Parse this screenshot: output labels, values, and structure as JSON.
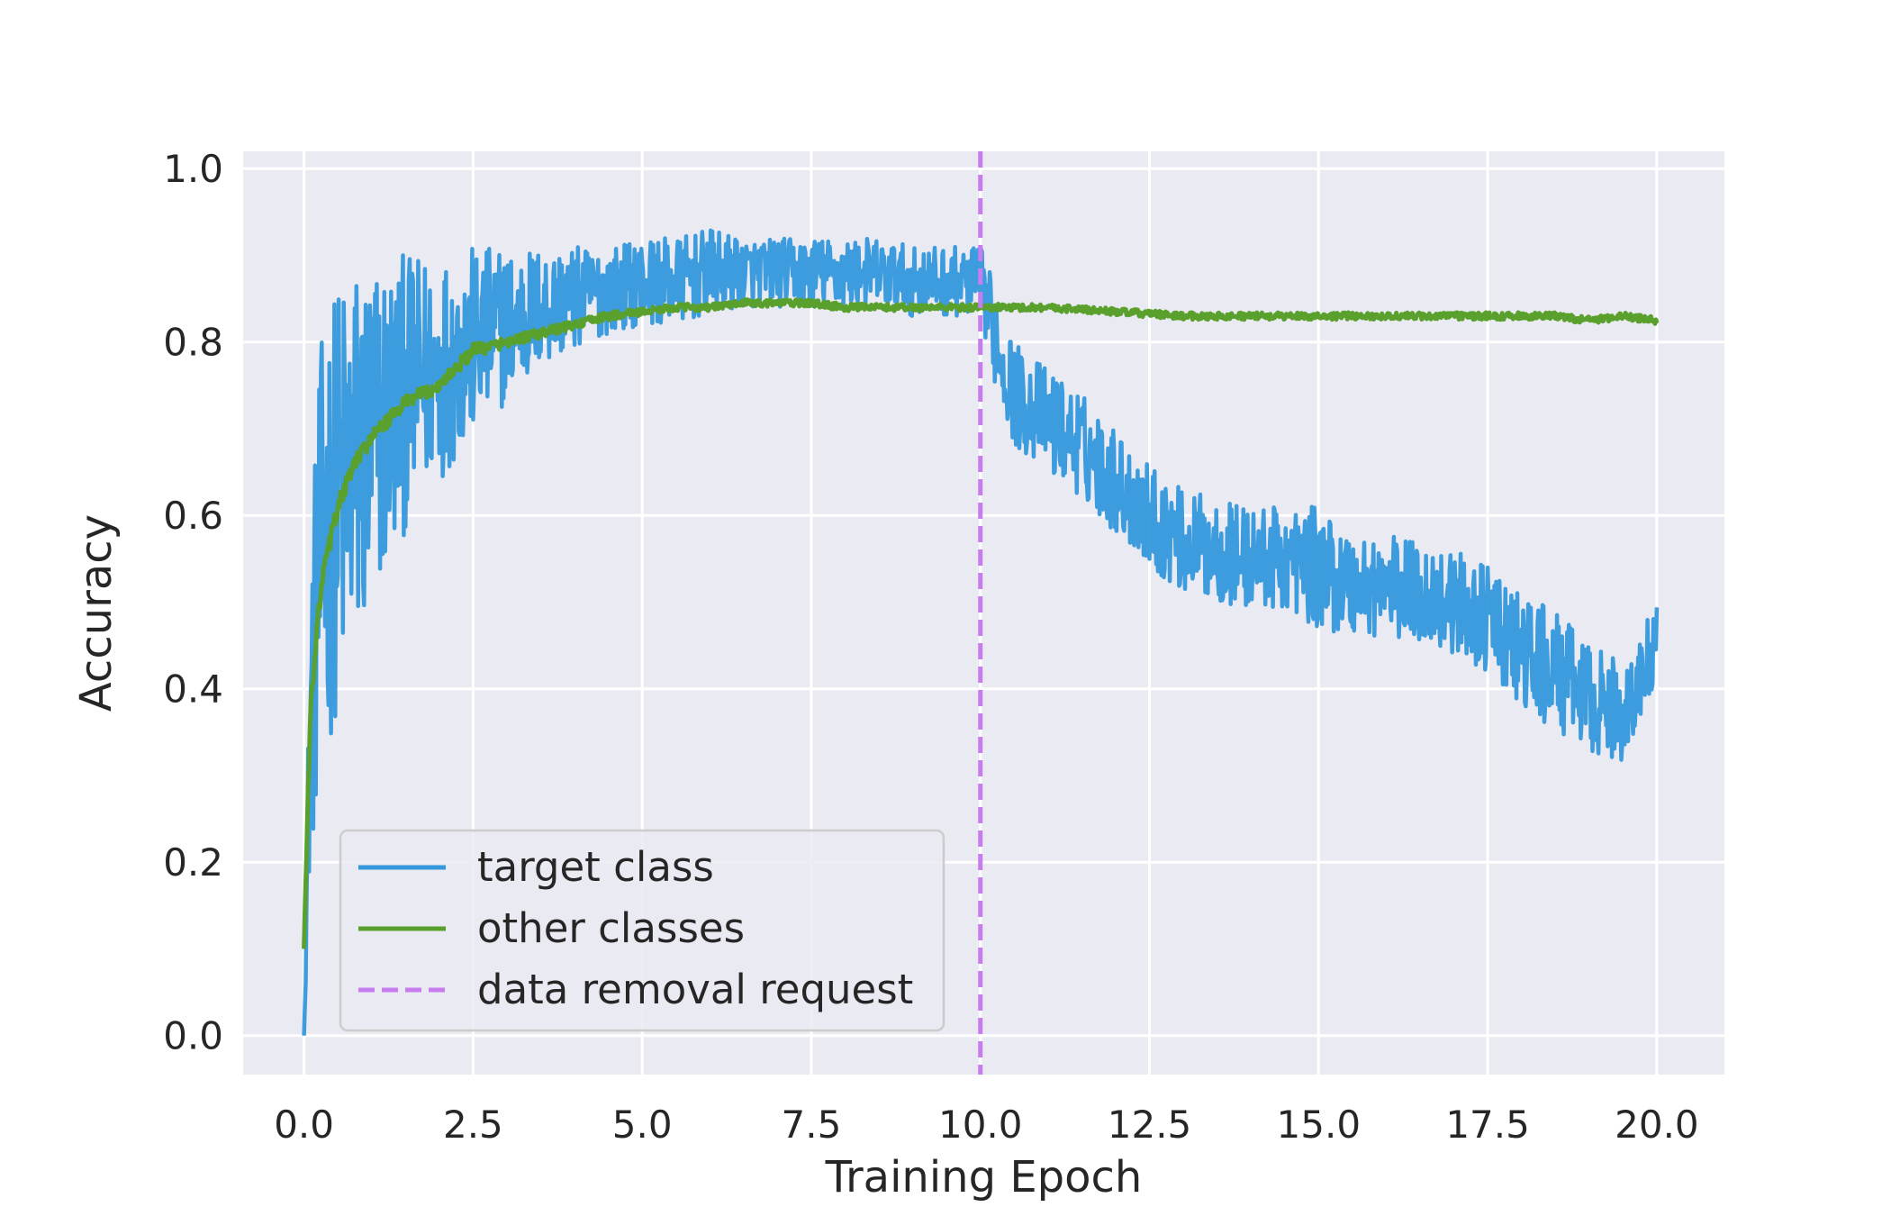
{
  "colors": {
    "background": "#eaeaf2",
    "grid": "#ffffff",
    "target_class": "#3498db",
    "other_classes": "#5aa02c",
    "removal_line": "#c77cf0"
  },
  "chart_data": {
    "type": "line",
    "title": "",
    "xlabel": "Training Epoch",
    "ylabel": "Accuracy",
    "xlim": [
      -0.9,
      21.0
    ],
    "ylim": [
      -0.045,
      1.02
    ],
    "x_ticks": [
      0.0,
      2.5,
      5.0,
      7.5,
      10.0,
      12.5,
      15.0,
      17.5,
      20.0
    ],
    "x_tick_labels": [
      "0.0",
      "2.5",
      "5.0",
      "7.5",
      "10.0",
      "12.5",
      "15.0",
      "17.5",
      "20.0"
    ],
    "y_ticks": [
      0.0,
      0.2,
      0.4,
      0.6,
      0.8,
      1.0
    ],
    "y_tick_labels": [
      "0.0",
      "0.2",
      "0.4",
      "0.6",
      "0.8",
      "1.0"
    ],
    "grid": true,
    "legend_position": "lower-left",
    "vertical_line": {
      "x": 10.0,
      "label": "data removal request"
    },
    "series": [
      {
        "name": "target class",
        "x": [
          0.0,
          0.05,
          0.1,
          0.2,
          0.3,
          0.5,
          0.75,
          1.0,
          1.25,
          1.5,
          1.75,
          2.0,
          2.5,
          3.0,
          3.5,
          4.0,
          4.5,
          5.0,
          5.5,
          6.0,
          6.5,
          7.0,
          7.5,
          8.0,
          8.5,
          9.0,
          9.5,
          10.0,
          10.25,
          10.5,
          11.0,
          11.5,
          12.0,
          12.5,
          13.0,
          13.5,
          14.0,
          14.5,
          15.0,
          15.5,
          16.0,
          16.5,
          17.0,
          17.5,
          18.0,
          18.5,
          19.0,
          19.5,
          20.0
        ],
        "y": [
          0.0,
          0.2,
          0.38,
          0.5,
          0.58,
          0.62,
          0.66,
          0.68,
          0.72,
          0.74,
          0.76,
          0.77,
          0.8,
          0.82,
          0.84,
          0.85,
          0.86,
          0.87,
          0.87,
          0.88,
          0.88,
          0.88,
          0.88,
          0.88,
          0.88,
          0.87,
          0.87,
          0.87,
          0.8,
          0.74,
          0.71,
          0.68,
          0.64,
          0.6,
          0.57,
          0.56,
          0.55,
          0.55,
          0.54,
          0.52,
          0.52,
          0.51,
          0.5,
          0.48,
          0.44,
          0.42,
          0.39,
          0.37,
          0.45
        ],
        "spread": [
          0.0,
          0.08,
          0.18,
          0.24,
          0.26,
          0.25,
          0.24,
          0.22,
          0.18,
          0.16,
          0.14,
          0.13,
          0.11,
          0.09,
          0.07,
          0.06,
          0.05,
          0.05,
          0.05,
          0.05,
          0.04,
          0.04,
          0.04,
          0.04,
          0.04,
          0.04,
          0.04,
          0.04,
          0.06,
          0.06,
          0.06,
          0.06,
          0.06,
          0.06,
          0.06,
          0.06,
          0.06,
          0.06,
          0.07,
          0.06,
          0.06,
          0.06,
          0.06,
          0.06,
          0.07,
          0.07,
          0.06,
          0.06,
          0.05
        ]
      },
      {
        "name": "other classes",
        "x": [
          0.0,
          0.05,
          0.1,
          0.2,
          0.3,
          0.5,
          0.75,
          1.0,
          1.25,
          1.5,
          2.0,
          2.5,
          3.0,
          3.5,
          4.0,
          4.5,
          5.0,
          5.5,
          6.0,
          6.5,
          7.0,
          7.5,
          8.0,
          8.5,
          9.0,
          9.5,
          10.0,
          10.5,
          11.0,
          12.0,
          13.0,
          14.0,
          15.0,
          16.0,
          17.0,
          17.5,
          18.0,
          18.5,
          19.0,
          19.5,
          20.0
        ],
        "y": [
          0.1,
          0.25,
          0.38,
          0.48,
          0.54,
          0.61,
          0.66,
          0.69,
          0.71,
          0.73,
          0.75,
          0.79,
          0.8,
          0.81,
          0.82,
          0.83,
          0.835,
          0.84,
          0.84,
          0.845,
          0.845,
          0.845,
          0.84,
          0.84,
          0.84,
          0.84,
          0.84,
          0.84,
          0.84,
          0.835,
          0.83,
          0.83,
          0.83,
          0.83,
          0.83,
          0.83,
          0.83,
          0.83,
          0.825,
          0.83,
          0.825
        ],
        "spread": [
          0.0,
          0.01,
          0.01,
          0.01,
          0.01,
          0.01,
          0.01,
          0.008,
          0.008,
          0.008,
          0.008,
          0.008,
          0.006,
          0.006,
          0.005,
          0.005,
          0.004,
          0.004,
          0.004,
          0.004,
          0.004,
          0.004,
          0.004,
          0.004,
          0.004,
          0.004,
          0.004,
          0.004,
          0.004,
          0.004,
          0.004,
          0.004,
          0.004,
          0.004,
          0.004,
          0.004,
          0.004,
          0.004,
          0.004,
          0.004,
          0.004
        ]
      }
    ]
  }
}
